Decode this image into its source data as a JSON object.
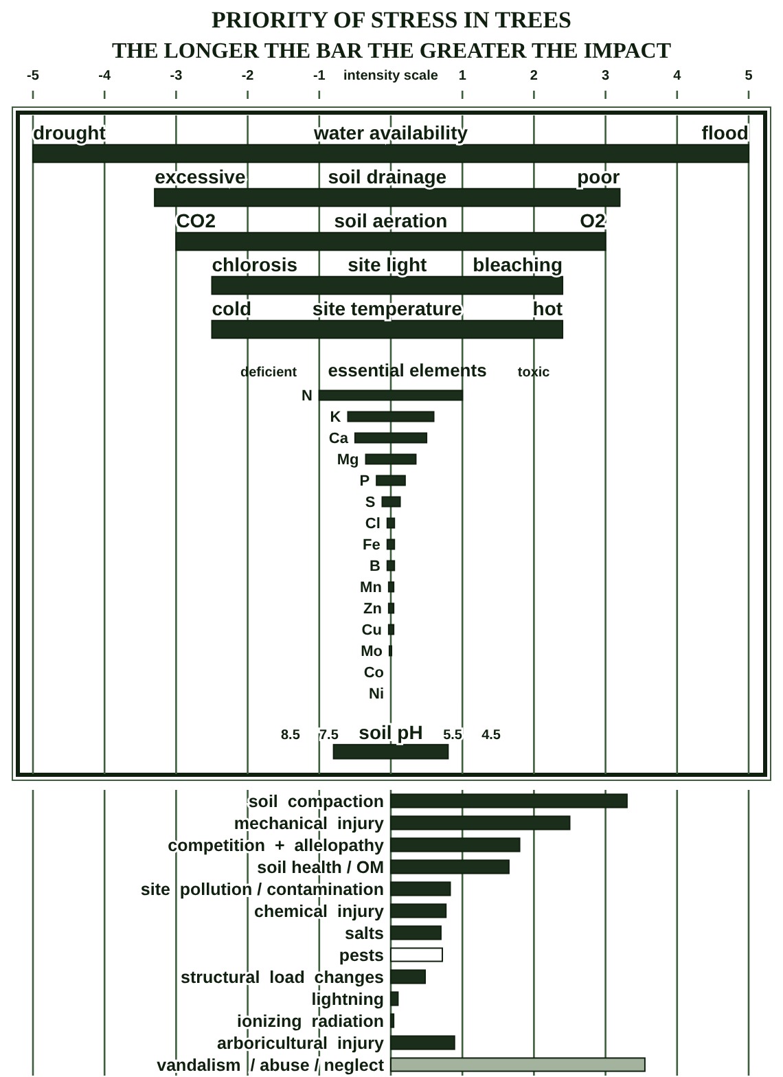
{
  "chart_data": [
    {
      "type": "bar",
      "orientation": "horizontal",
      "title": "PRIORITY OF STRESS IN TREES",
      "subtitle": "THE LONGER THE BAR THE GREATER THE IMPACT",
      "xlabel": "intensity scale",
      "categories": [
        "water availability",
        "soil drainage",
        "soil aeration",
        "site light",
        "site temperature"
      ],
      "base": [
        -5,
        -3.3,
        -3,
        -2.5,
        -2.5
      ],
      "values": [
        10,
        6.5,
        6,
        4.9,
        4.9
      ],
      "color": "#1b2e1b",
      "xlim": [
        -5,
        5
      ],
      "xticks": [
        -5,
        -4,
        -3,
        -2,
        -1,
        1,
        2,
        3,
        4,
        5
      ],
      "grid": "x",
      "ref_lines": [
        {
          "axis": "x",
          "value": 0
        }
      ],
      "annotations": [
        {
          "text": "drought",
          "x": -5,
          "y": "water availability"
        },
        {
          "text": "flood",
          "x": 5,
          "y": "water availability"
        },
        {
          "text": "excessive",
          "x": -3.3,
          "y": "soil drainage"
        },
        {
          "text": "poor",
          "x": 3.2,
          "y": "soil drainage"
        },
        {
          "text": "CO2",
          "x": -3,
          "y": "soil aeration"
        },
        {
          "text": "O2",
          "x": 3,
          "y": "soil aeration"
        },
        {
          "text": "chlorosis",
          "x": -2.5,
          "y": "site light"
        },
        {
          "text": "bleaching",
          "x": 2.4,
          "y": "site light"
        },
        {
          "text": "cold",
          "x": -2.5,
          "y": "site temperature"
        },
        {
          "text": "hot",
          "x": 2.4,
          "y": "site temperature"
        }
      ]
    },
    {
      "type": "bar",
      "orientation": "horizontal",
      "title": "essential elements",
      "categories": [
        "N",
        "K",
        "Ca",
        "Mg",
        "P",
        "S",
        "Cl",
        "Fe",
        "B",
        "Mn",
        "Zn",
        "Cu",
        "Mo",
        "Co",
        "Ni"
      ],
      "base": [
        -1,
        -0.6,
        -0.5,
        -0.35,
        -0.2,
        -0.12,
        -0.05,
        -0.05,
        -0.05,
        -0.03,
        -0.03,
        -0.03,
        -0.02,
        null,
        null
      ],
      "values": [
        2,
        1.2,
        1,
        0.7,
        0.4,
        0.25,
        0.1,
        0.1,
        0.1,
        0.07,
        0.07,
        0.07,
        0.03,
        null,
        null
      ],
      "color": "#1b2e1b",
      "xlim": [
        -5,
        5
      ],
      "xticks": [
        -5,
        -4,
        -3,
        -2,
        -1,
        1,
        2,
        3,
        4,
        5
      ],
      "grid": "x",
      "ref_lines": [
        {
          "axis": "x",
          "value": 0
        }
      ],
      "tick_labels": "y",
      "annotations": [
        "deficient",
        "toxic"
      ]
    },
    {
      "type": "bar",
      "orientation": "horizontal",
      "categories": [
        "soil pH"
      ],
      "base": [
        -0.8
      ],
      "values": [
        1.6
      ],
      "color": "#1b2e1b",
      "xlim": [
        -5,
        5
      ],
      "xticks": [
        -5,
        -4,
        -3,
        -2,
        -1,
        1,
        2,
        3,
        4,
        5
      ],
      "grid": "x",
      "ref_lines": [
        {
          "axis": "x",
          "value": 0
        }
      ],
      "tick_labels": "y",
      "annotations": [
        "8.5",
        "7.5",
        "5.5",
        "4.5"
      ]
    },
    {
      "type": "bar",
      "orientation": "horizontal",
      "categories": [
        "soil  compaction",
        "mechanical  injury",
        "competition  +  allelopathy",
        "soil health / OM",
        "site  pollution / contamination",
        "chemical  injury",
        "salts",
        "pests",
        "structural  load  changes",
        "lightning",
        "ionizing  radiation",
        "arboricultural  injury",
        "vandalism  / abuse / neglect"
      ],
      "values": [
        3.3,
        2.5,
        1.8,
        1.65,
        0.83,
        0.77,
        0.7,
        0.72,
        0.48,
        0.1,
        0.04,
        0.89,
        3.55
      ],
      "colors": [
        "#1b2e1b",
        "#1b2e1b",
        "#1b2e1b",
        "#1b2e1b",
        "#1b2e1b",
        "#1b2e1b",
        "#1b2e1b",
        "#ffffff",
        "#1b2e1b",
        "#1b2e1b",
        "#1b2e1b",
        "#1b2e1b",
        "#a3b39d"
      ],
      "xlim": [
        -5,
        5
      ],
      "xticks": [
        -5,
        -4,
        -3,
        -2,
        -1,
        1,
        2,
        3,
        4,
        5
      ],
      "grid": "x",
      "ref_lines": [
        {
          "axis": "x",
          "value": 0
        }
      ],
      "tick_labels": "y"
    }
  ]
}
